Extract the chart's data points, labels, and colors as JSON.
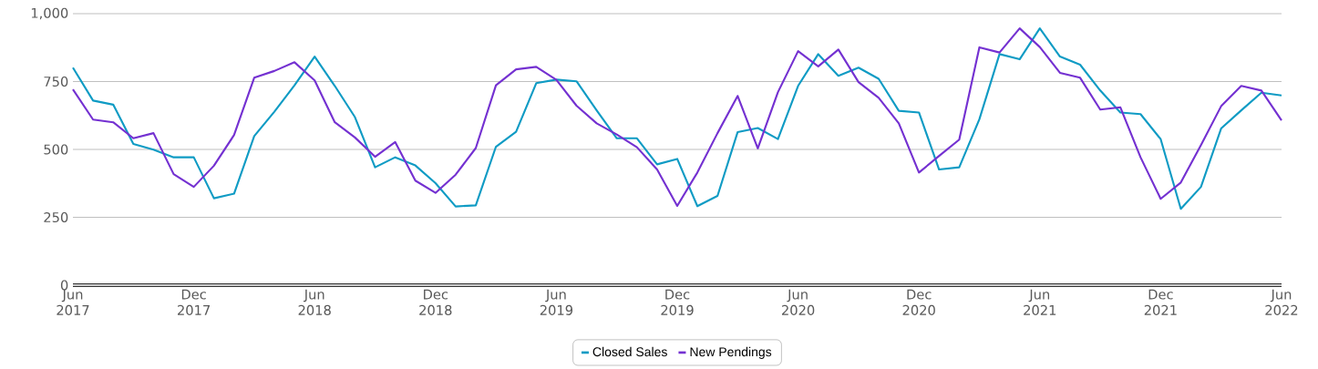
{
  "chart_data": {
    "type": "line",
    "x": [
      "2017-06",
      "2017-07",
      "2017-08",
      "2017-09",
      "2017-10",
      "2017-11",
      "2017-12",
      "2018-01",
      "2018-02",
      "2018-03",
      "2018-04",
      "2018-05",
      "2018-06",
      "2018-07",
      "2018-08",
      "2018-09",
      "2018-10",
      "2018-11",
      "2018-12",
      "2019-01",
      "2019-02",
      "2019-03",
      "2019-04",
      "2019-05",
      "2019-06",
      "2019-07",
      "2019-08",
      "2019-09",
      "2019-10",
      "2019-11",
      "2019-12",
      "2020-01",
      "2020-02",
      "2020-03",
      "2020-04",
      "2020-05",
      "2020-06",
      "2020-07",
      "2020-08",
      "2020-09",
      "2020-10",
      "2020-11",
      "2020-12",
      "2021-01",
      "2021-02",
      "2021-03",
      "2021-04",
      "2021-05",
      "2021-06",
      "2021-07",
      "2021-08",
      "2021-09",
      "2021-10",
      "2021-11",
      "2021-12",
      "2022-01",
      "2022-02",
      "2022-03",
      "2022-04",
      "2022-05",
      "2022-06"
    ],
    "series": [
      {
        "name": "Closed Sales",
        "color": "#0f9bc4",
        "values": [
          801,
          680,
          665,
          520,
          499,
          471,
          471,
          320,
          337,
          549,
          639,
          736,
          842,
          734,
          619,
          434,
          471,
          441,
          376,
          290,
          294,
          510,
          565,
          744,
          757,
          751,
          644,
          541,
          541,
          445,
          465,
          291,
          329,
          564,
          579,
          538,
          734,
          851,
          771,
          801,
          760,
          642,
          636,
          426,
          434,
          611,
          851,
          832,
          946,
          842,
          812,
          717,
          636,
          630,
          538,
          281,
          362,
          577,
          644,
          709,
          699
        ]
      },
      {
        "name": "New Pendings",
        "color": "#7431d1",
        "values": [
          721,
          610,
          600,
          541,
          560,
          409,
          362,
          440,
          553,
          764,
          789,
          821,
          754,
          600,
          544,
          473,
          527,
          385,
          340,
          407,
          505,
          736,
          795,
          804,
          756,
          661,
          596,
          555,
          508,
          426,
          292,
          415,
          560,
          697,
          504,
          711,
          862,
          806,
          868,
          748,
          690,
          596,
          415,
          476,
          536,
          876,
          857,
          946,
          877,
          782,
          764,
          647,
          655,
          471,
          318,
          378,
          516,
          659,
          734,
          717,
          607
        ]
      }
    ],
    "xlim": [
      "2017-06",
      "2022-06"
    ],
    "xticks": [
      {
        "value": "2017-06",
        "label": "Jun 2017"
      },
      {
        "value": "2017-12",
        "label": "Dec 2017"
      },
      {
        "value": "2018-06",
        "label": "Jun 2018"
      },
      {
        "value": "2018-12",
        "label": "Dec 2018"
      },
      {
        "value": "2019-06",
        "label": "Jun 2019"
      },
      {
        "value": "2019-12",
        "label": "Dec 2019"
      },
      {
        "value": "2020-06",
        "label": "Jun 2020"
      },
      {
        "value": "2020-12",
        "label": "Dec 2020"
      },
      {
        "value": "2021-06",
        "label": "Jun 2021"
      },
      {
        "value": "2021-12",
        "label": "Dec 2021"
      },
      {
        "value": "2022-06",
        "label": "Jun 2022"
      }
    ],
    "ylim": [
      0,
      1000
    ],
    "yticks": [
      0,
      250,
      500,
      750,
      {
        "value": 1000,
        "label": "1,000"
      }
    ],
    "grid": "y",
    "legend": "bottom",
    "marker": "none",
    "line_style": "solid"
  }
}
